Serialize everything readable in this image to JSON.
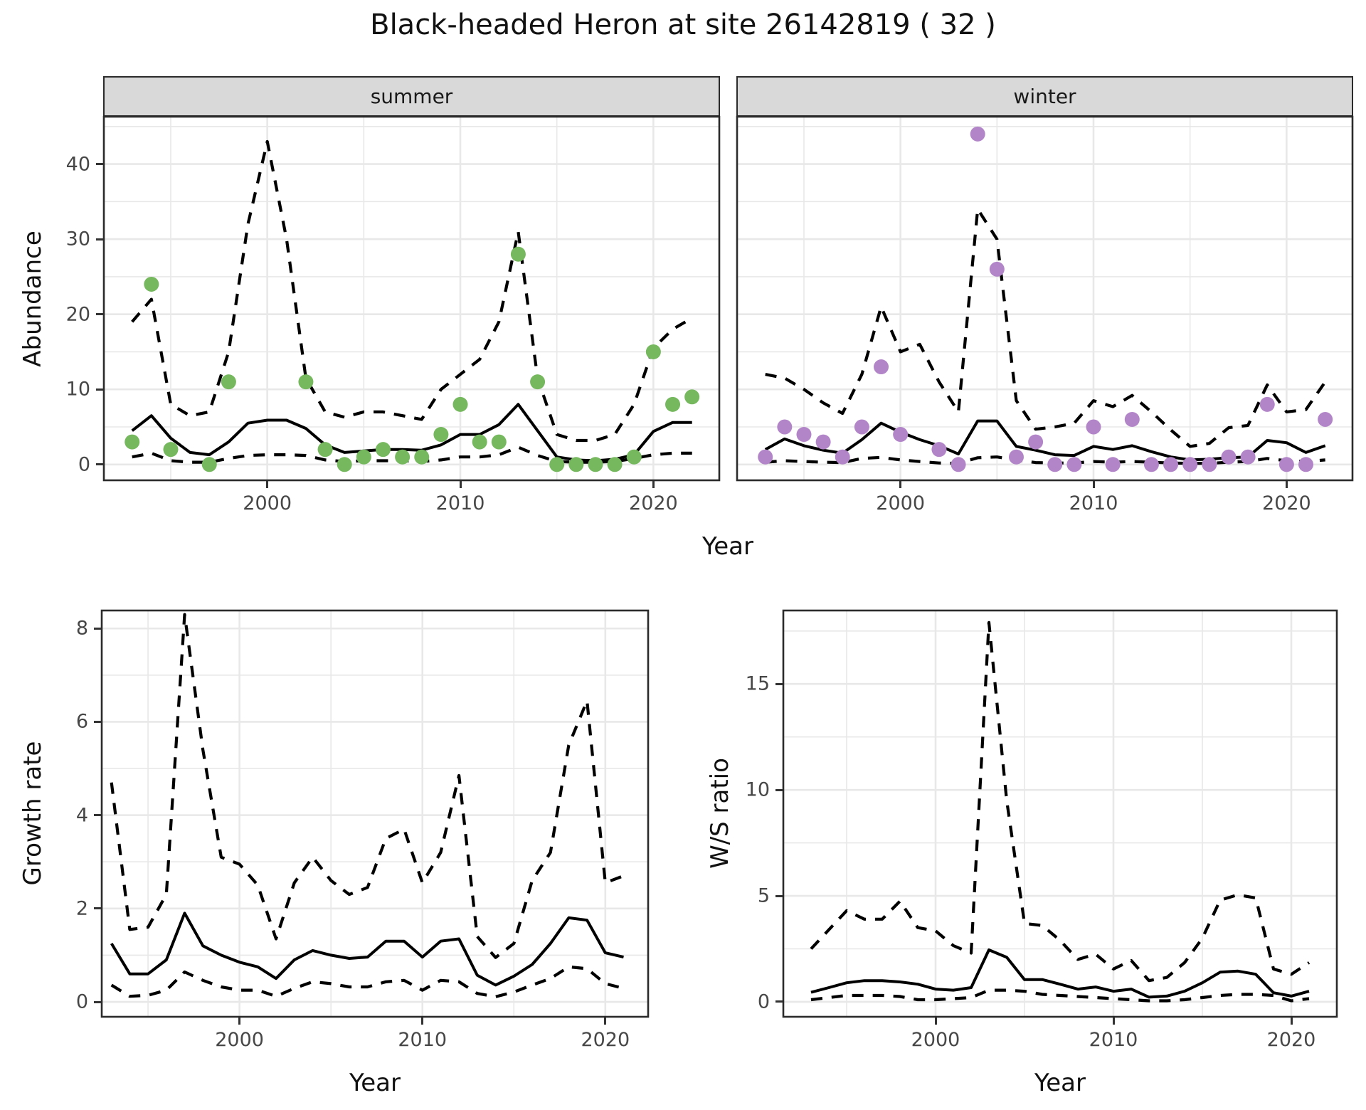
{
  "figure": {
    "title": "Black-headed Heron at site 26142819 ( 32 )",
    "facets": {
      "summer": "summer",
      "winter": "winter"
    },
    "xlabel": "Year",
    "ylabels": {
      "abundance": "Abundance",
      "growth": "Growth rate",
      "ws": "W/S ratio"
    }
  },
  "colors": {
    "point_green": "#75b85e",
    "point_purple": "#b285c8",
    "line": "#000000",
    "grid": "#e8e8e8",
    "strip_bg": "#d9d9d9",
    "panel_border": "#2b2b2b",
    "tick_text": "#474747"
  },
  "chart_data": [
    {
      "id": "abundance-summer",
      "type": "line",
      "facet": "summer",
      "title": "Black-headed Heron at site 26142819 ( 32 )",
      "xlabel": "Year",
      "ylabel": "Abundance",
      "x_ticks": [
        2000,
        2010,
        2020
      ],
      "x_minor": [
        1995,
        2005,
        2015
      ],
      "y_ticks": [
        0,
        10,
        20,
        30,
        40
      ],
      "y_minor": [
        5,
        15,
        25,
        35,
        45
      ],
      "xlim": [
        1991.5,
        2023.45
      ],
      "ylim": [
        -2.2,
        46.4
      ],
      "grid": true,
      "legend": "none",
      "series": [
        {
          "name": "observed",
          "style": "points",
          "color": "#75b85e",
          "x": [
            1993,
            1994,
            1995,
            1997,
            1998,
            2002,
            2003,
            2004,
            2005,
            2006,
            2007,
            2008,
            2009,
            2010,
            2011,
            2012,
            2013,
            2014,
            2015,
            2016,
            2017,
            2018,
            2019,
            2020,
            2021,
            2022
          ],
          "y": [
            3,
            24,
            2,
            0,
            11,
            11,
            2,
            0,
            1,
            2,
            1,
            1,
            4,
            8,
            3,
            3,
            28,
            11,
            0,
            0,
            0,
            0,
            1,
            15,
            8,
            9
          ]
        },
        {
          "name": "fit",
          "style": "solid-line",
          "color": "#000000",
          "x": [
            1993,
            1994,
            1995,
            1996,
            1997,
            1998,
            1999,
            2000,
            2001,
            2002,
            2003,
            2004,
            2005,
            2006,
            2007,
            2008,
            2009,
            2010,
            2011,
            2012,
            2013,
            2014,
            2015,
            2016,
            2017,
            2018,
            2019,
            2020,
            2021,
            2022
          ],
          "y": [
            4.5,
            6.5,
            3.5,
            1.6,
            1.3,
            3.0,
            5.5,
            5.9,
            5.9,
            4.8,
            2.6,
            1.6,
            1.8,
            2.0,
            2.0,
            1.9,
            2.6,
            4.0,
            4.0,
            5.3,
            8.0,
            4.5,
            1.0,
            0.6,
            0.5,
            0.7,
            1.3,
            4.4,
            5.6,
            5.6
          ]
        },
        {
          "name": "upper-ci",
          "style": "dashed-line",
          "color": "#000000",
          "x": [
            1993,
            1994,
            1995,
            1996,
            1997,
            1998,
            1999,
            2000,
            2001,
            2002,
            2003,
            2004,
            2005,
            2006,
            2007,
            2008,
            2009,
            2010,
            2011,
            2012,
            2013,
            2014,
            2015,
            2016,
            2017,
            2018,
            2019,
            2020,
            2021,
            2022
          ],
          "y": [
            19,
            22,
            8,
            6.5,
            7,
            15,
            32,
            43,
            30,
            11.5,
            7,
            6.3,
            7,
            7,
            6.5,
            6,
            10,
            12,
            14,
            19,
            31,
            11.5,
            4,
            3.2,
            3.2,
            4,
            8,
            15.5,
            18,
            19.5
          ]
        },
        {
          "name": "lower-ci",
          "style": "dashed-line",
          "color": "#000000",
          "x": [
            1993,
            1994,
            1995,
            1996,
            1997,
            1998,
            1999,
            2000,
            2001,
            2002,
            2003,
            2004,
            2005,
            2006,
            2007,
            2008,
            2009,
            2010,
            2011,
            2012,
            2013,
            2014,
            2015,
            2016,
            2017,
            2018,
            2019,
            2020,
            2021,
            2022
          ],
          "y": [
            1.0,
            1.5,
            0.5,
            0.3,
            0.3,
            0.8,
            1.2,
            1.3,
            1.3,
            1.2,
            0.6,
            0.4,
            0.5,
            0.5,
            0.5,
            0.4,
            0.6,
            1.0,
            1.0,
            1.3,
            2.3,
            1.2,
            0.4,
            0.3,
            0.3,
            0.4,
            0.8,
            1.3,
            1.5,
            1.5
          ]
        }
      ]
    },
    {
      "id": "abundance-winter",
      "type": "line",
      "facet": "winter",
      "title": "Black-headed Heron at site 26142819 ( 32 )",
      "xlabel": "Year",
      "ylabel": "Abundance",
      "x_ticks": [
        2000,
        2010,
        2020
      ],
      "x_minor": [
        1995,
        2005,
        2015
      ],
      "y_ticks": [
        0,
        10,
        20,
        30,
        40
      ],
      "y_minor": [
        5,
        15,
        25,
        35,
        45
      ],
      "xlim": [
        1991.5,
        2023.45
      ],
      "ylim": [
        -2.2,
        46.4
      ],
      "grid": true,
      "legend": "none",
      "series": [
        {
          "name": "observed",
          "style": "points",
          "color": "#b285c8",
          "x": [
            1993,
            1994,
            1995,
            1996,
            1997,
            1998,
            1999,
            2000,
            2002,
            2003,
            2004,
            2005,
            2006,
            2007,
            2008,
            2009,
            2010,
            2011,
            2012,
            2013,
            2014,
            2015,
            2016,
            2017,
            2018,
            2019,
            2020,
            2021,
            2022
          ],
          "y": [
            1,
            5,
            4,
            3,
            1,
            5,
            13,
            4,
            2,
            0,
            44,
            26,
            1,
            3,
            0,
            0,
            5,
            0,
            6,
            0,
            0,
            0,
            0,
            1,
            1,
            8,
            0,
            0,
            6
          ]
        },
        {
          "name": "fit",
          "style": "solid-line",
          "color": "#000000",
          "x": [
            1993,
            1994,
            1995,
            1996,
            1997,
            1998,
            1999,
            2000,
            2001,
            2002,
            2003,
            2004,
            2005,
            2006,
            2007,
            2008,
            2009,
            2010,
            2011,
            2012,
            2013,
            2014,
            2015,
            2016,
            2017,
            2018,
            2019,
            2020,
            2021,
            2022
          ],
          "y": [
            2.0,
            3.4,
            2.5,
            1.9,
            1.5,
            3.3,
            5.5,
            4.3,
            3.3,
            2.5,
            1.4,
            5.8,
            5.8,
            2.4,
            1.9,
            1.3,
            1.2,
            2.4,
            2.0,
            2.5,
            1.7,
            1.0,
            0.6,
            0.7,
            0.9,
            1.0,
            3.2,
            2.9,
            1.6,
            2.5
          ]
        },
        {
          "name": "upper-ci",
          "style": "dashed-line",
          "color": "#000000",
          "x": [
            1993,
            1994,
            1995,
            1996,
            1997,
            1998,
            1999,
            2000,
            2001,
            2002,
            2003,
            2004,
            2005,
            2006,
            2007,
            2008,
            2009,
            2010,
            2011,
            2012,
            2013,
            2014,
            2015,
            2016,
            2017,
            2018,
            2019,
            2020,
            2021,
            2022
          ],
          "y": [
            12,
            11.5,
            10,
            8.2,
            6.8,
            12,
            21,
            15,
            16,
            11,
            7,
            34,
            30,
            8.5,
            4.7,
            5,
            5.5,
            8.5,
            7.7,
            9.2,
            7,
            4.6,
            2.4,
            2.8,
            4.9,
            5.2,
            10.6,
            7,
            7.3,
            11
          ]
        },
        {
          "name": "lower-ci",
          "style": "dashed-line",
          "color": "#000000",
          "x": [
            1993,
            1994,
            1995,
            1996,
            1997,
            1998,
            1999,
            2000,
            2001,
            2002,
            2003,
            2004,
            2005,
            2006,
            2007,
            2008,
            2009,
            2010,
            2011,
            2012,
            2013,
            2014,
            2015,
            2016,
            2017,
            2018,
            2019,
            2020,
            2021,
            2022
          ],
          "y": [
            0.3,
            0.5,
            0.4,
            0.3,
            0.25,
            0.8,
            0.95,
            0.6,
            0.4,
            0.2,
            0.15,
            0.9,
            1.0,
            0.6,
            0.25,
            0.2,
            0.2,
            0.4,
            0.3,
            0.4,
            0.3,
            0.2,
            0.15,
            0.15,
            0.3,
            0.4,
            0.8,
            0.5,
            0.4,
            0.6
          ]
        }
      ]
    },
    {
      "id": "growth-rate",
      "type": "line",
      "facet": "",
      "title": "",
      "xlabel": "Year",
      "ylabel": "Growth rate",
      "x_ticks": [
        2000,
        2010,
        2020
      ],
      "x_minor": [
        1995,
        2005,
        2015
      ],
      "y_ticks": [
        0,
        2,
        4,
        6,
        8
      ],
      "y_minor": [
        1,
        3,
        5,
        7
      ],
      "xlim": [
        1992.43,
        2022.38
      ],
      "ylim": [
        -0.335,
        8.4
      ],
      "grid": true,
      "legend": "none",
      "series": [
        {
          "name": "fit",
          "style": "solid-line",
          "color": "#000000",
          "x": [
            1993,
            1994,
            1995,
            1996,
            1997,
            1998,
            1999,
            2000,
            2001,
            2002,
            2003,
            2004,
            2005,
            2006,
            2007,
            2008,
            2009,
            2010,
            2011,
            2012,
            2013,
            2014,
            2015,
            2016,
            2017,
            2018,
            2019,
            2020,
            2021
          ],
          "y": [
            1.25,
            0.6,
            0.6,
            0.9,
            1.9,
            1.2,
            1.0,
            0.85,
            0.75,
            0.5,
            0.9,
            1.1,
            1.0,
            0.93,
            0.96,
            1.3,
            1.3,
            0.96,
            1.3,
            1.35,
            0.57,
            0.36,
            0.55,
            0.8,
            1.25,
            1.8,
            1.75,
            1.05,
            0.96
          ]
        },
        {
          "name": "upper-ci",
          "style": "dashed-line",
          "color": "#000000",
          "x": [
            1993,
            1994,
            1995,
            1996,
            1997,
            1998,
            1999,
            2000,
            2001,
            2002,
            2003,
            2004,
            2005,
            2006,
            2007,
            2008,
            2009,
            2010,
            2011,
            2012,
            2013,
            2014,
            2015,
            2016,
            2017,
            2018,
            2019,
            2020,
            2021
          ],
          "y": [
            4.7,
            1.55,
            1.6,
            2.3,
            8.3,
            5.4,
            3.1,
            2.95,
            2.5,
            1.35,
            2.55,
            3.1,
            2.6,
            2.3,
            2.45,
            3.5,
            3.7,
            2.55,
            3.2,
            4.85,
            1.4,
            0.95,
            1.25,
            2.6,
            3.2,
            5.5,
            6.45,
            2.55,
            2.7
          ]
        },
        {
          "name": "lower-ci",
          "style": "dashed-line",
          "color": "#000000",
          "x": [
            1993,
            1994,
            1995,
            1996,
            1997,
            1998,
            1999,
            2000,
            2001,
            2002,
            2003,
            2004,
            2005,
            2006,
            2007,
            2008,
            2009,
            2010,
            2011,
            2012,
            2013,
            2014,
            2015,
            2016,
            2017,
            2018,
            2019,
            2020,
            2021
          ],
          "y": [
            0.36,
            0.12,
            0.14,
            0.25,
            0.64,
            0.46,
            0.32,
            0.25,
            0.25,
            0.12,
            0.29,
            0.43,
            0.39,
            0.32,
            0.32,
            0.43,
            0.46,
            0.25,
            0.46,
            0.43,
            0.18,
            0.11,
            0.21,
            0.36,
            0.5,
            0.75,
            0.71,
            0.39,
            0.29
          ]
        }
      ]
    },
    {
      "id": "ws-ratio",
      "type": "line",
      "facet": "",
      "title": "",
      "xlabel": "Year",
      "ylabel": "W/S ratio",
      "x_ticks": [
        2000,
        2010,
        2020
      ],
      "x_minor": [
        1995,
        2005,
        2015
      ],
      "y_ticks": [
        0,
        5,
        10,
        15
      ],
      "y_minor": [
        2.5,
        7.5,
        12.5,
        17.5
      ],
      "xlim": [
        1991.4,
        2022.6
      ],
      "ylim": [
        -0.74,
        18.5
      ],
      "grid": true,
      "legend": "none",
      "series": [
        {
          "name": "fit",
          "style": "solid-line",
          "color": "#000000",
          "x": [
            1993,
            1994,
            1995,
            1996,
            1997,
            1998,
            1999,
            2000,
            2001,
            2002,
            2003,
            2004,
            2005,
            2006,
            2007,
            2008,
            2009,
            2010,
            2011,
            2012,
            2013,
            2014,
            2015,
            2016,
            2017,
            2018,
            2019,
            2020,
            2021
          ],
          "y": [
            0.45,
            0.67,
            0.9,
            1.0,
            1.0,
            0.94,
            0.83,
            0.6,
            0.55,
            0.67,
            2.45,
            2.1,
            1.05,
            1.05,
            0.83,
            0.6,
            0.7,
            0.5,
            0.6,
            0.22,
            0.27,
            0.5,
            0.9,
            1.4,
            1.45,
            1.3,
            0.43,
            0.27,
            0.5
          ]
        },
        {
          "name": "upper-ci",
          "style": "dashed-line",
          "color": "#000000",
          "x": [
            1993,
            1994,
            1995,
            1996,
            1997,
            1998,
            1999,
            2000,
            2001,
            2002,
            2003,
            2004,
            2005,
            2006,
            2007,
            2008,
            2009,
            2010,
            2011,
            2012,
            2013,
            2014,
            2015,
            2016,
            2017,
            2018,
            2019,
            2020,
            2021
          ],
          "y": [
            2.5,
            3.4,
            4.3,
            3.9,
            3.9,
            4.75,
            3.5,
            3.35,
            2.65,
            2.3,
            17.9,
            9.5,
            3.7,
            3.6,
            2.9,
            2.0,
            2.25,
            1.55,
            1.95,
            1.0,
            1.15,
            1.85,
            3.0,
            4.8,
            5.05,
            4.9,
            1.55,
            1.3,
            1.85
          ]
        },
        {
          "name": "lower-ci",
          "style": "dashed-line",
          "color": "#000000",
          "x": [
            1993,
            1994,
            1995,
            1996,
            1997,
            1998,
            1999,
            2000,
            2001,
            2002,
            2003,
            2004,
            2005,
            2006,
            2007,
            2008,
            2009,
            2010,
            2011,
            2012,
            2013,
            2014,
            2015,
            2016,
            2017,
            2018,
            2019,
            2020,
            2021
          ],
          "y": [
            0.1,
            0.2,
            0.3,
            0.3,
            0.3,
            0.25,
            0.1,
            0.1,
            0.15,
            0.2,
            0.55,
            0.55,
            0.5,
            0.35,
            0.3,
            0.25,
            0.2,
            0.15,
            0.1,
            0.05,
            0.05,
            0.1,
            0.2,
            0.3,
            0.35,
            0.35,
            0.3,
            0.05,
            0.15
          ]
        }
      ]
    }
  ]
}
